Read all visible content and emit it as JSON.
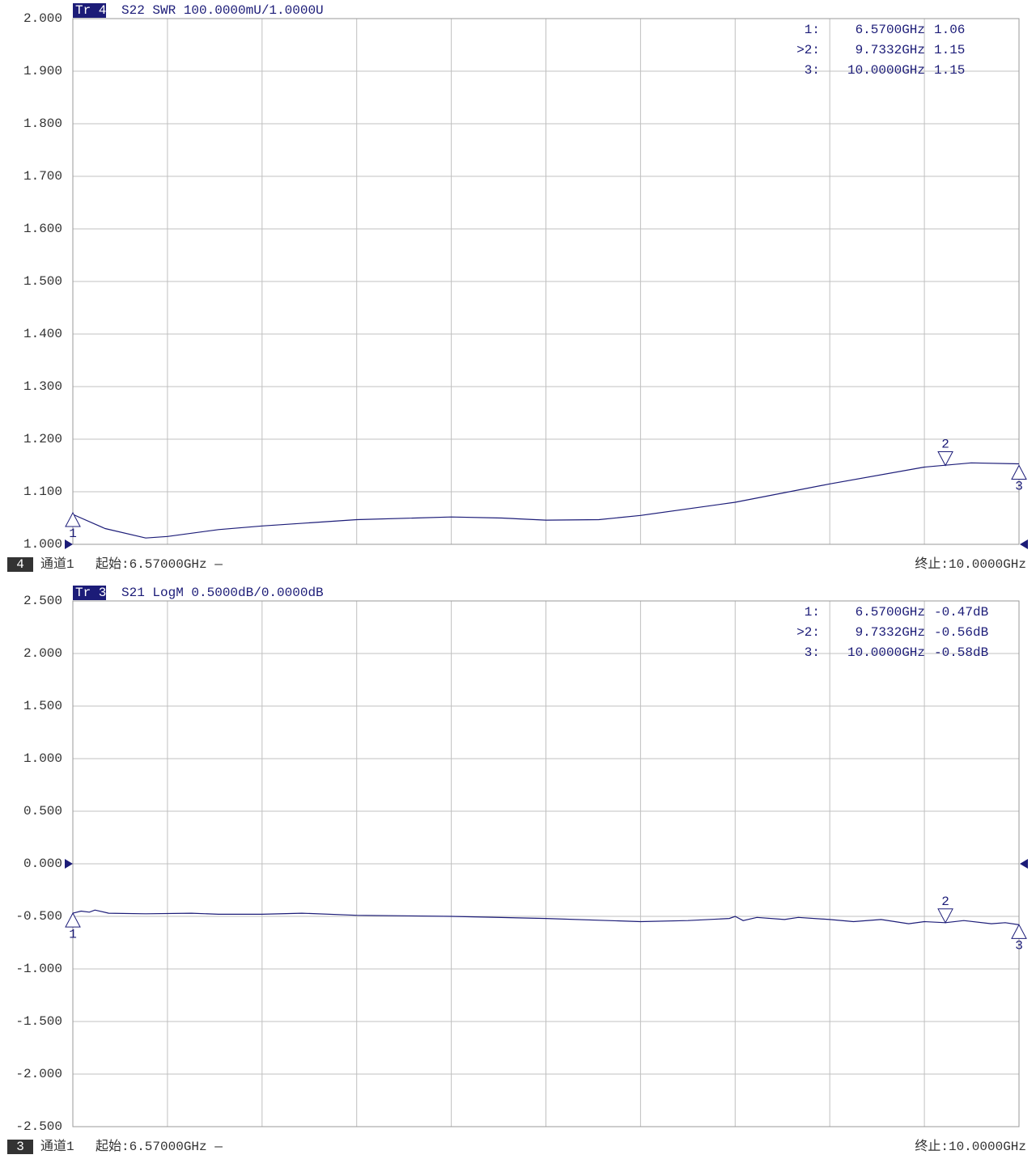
{
  "chart_data": [
    {
      "type": "line",
      "trace_tag": "Tr 4",
      "trace_info": "S22 SWR 100.0000mU/1.0000U",
      "color": "#1c1c78",
      "ylim": [
        1.0,
        2.0
      ],
      "yticks": [
        {
          "value": 2.0,
          "label": "2.000"
        },
        {
          "value": 1.9,
          "label": "1.900"
        },
        {
          "value": 1.8,
          "label": "1.800"
        },
        {
          "value": 1.7,
          "label": "1.700"
        },
        {
          "value": 1.6,
          "label": "1.600"
        },
        {
          "value": 1.5,
          "label": "1.500"
        },
        {
          "value": 1.4,
          "label": "1.400"
        },
        {
          "value": 1.3,
          "label": "1.300"
        },
        {
          "value": 1.2,
          "label": "1.200"
        },
        {
          "value": 1.1,
          "label": "1.100"
        },
        {
          "value": 1.0,
          "label": "1.000"
        }
      ],
      "xlim": [
        6.57,
        10.0
      ],
      "grid": true,
      "ref_level": 1.0,
      "x": [
        6.57,
        6.687,
        6.834,
        6.913,
        7.098,
        7.256,
        7.599,
        7.942,
        8.125,
        8.285,
        8.477,
        8.628,
        8.971,
        9.314,
        9.657,
        9.827,
        10.0
      ],
      "values": [
        1.057,
        1.03,
        1.012,
        1.015,
        1.028,
        1.035,
        1.047,
        1.052,
        1.05,
        1.046,
        1.047,
        1.055,
        1.08,
        1.115,
        1.147,
        1.155,
        1.153
      ],
      "markers": {
        "ids": [
          "1",
          "2",
          "3"
        ],
        "names": [
          "1:",
          ">2:",
          "3:"
        ],
        "active": 1,
        "x": [
          6.57,
          9.7332,
          10.0
        ],
        "x_labels": [
          "6.5700GHz",
          "9.7332GHz",
          "10.0000GHz"
        ],
        "values": [
          1.06,
          1.15,
          1.15
        ]
      },
      "trace_num": "4",
      "channel": "通道1",
      "start": "起始:6.57000GHz —",
      "stop": "终止:10.0000GHz"
    },
    {
      "type": "line",
      "trace_tag": "Tr 3",
      "trace_info": "S21 LogM 0.5000dB/0.0000dB",
      "color": "#1c1c78",
      "ylim": [
        -2.5,
        2.5
      ],
      "yticks": [
        {
          "value": 2.5,
          "label": "2.500"
        },
        {
          "value": 2.0,
          "label": "2.000"
        },
        {
          "value": 1.5,
          "label": "1.500"
        },
        {
          "value": 1.0,
          "label": "1.000"
        },
        {
          "value": 0.5,
          "label": "0.500"
        },
        {
          "value": 0.0,
          "label": "0.000"
        },
        {
          "value": -0.5,
          "label": "-0.500"
        },
        {
          "value": -1.0,
          "label": "-1.000"
        },
        {
          "value": -1.5,
          "label": "-1.500"
        },
        {
          "value": -2.0,
          "label": "-2.000"
        },
        {
          "value": -2.5,
          "label": "-2.500"
        }
      ],
      "xlim": [
        6.57,
        10.0
      ],
      "grid": true,
      "ref_level": 0.0,
      "x": [
        6.57,
        6.6,
        6.63,
        6.65,
        6.7,
        6.834,
        7.0,
        7.098,
        7.256,
        7.4,
        7.599,
        7.942,
        8.285,
        8.628,
        8.8,
        8.95,
        8.971,
        9.0,
        9.05,
        9.15,
        9.2,
        9.314,
        9.4,
        9.5,
        9.6,
        9.657,
        9.7332,
        9.8,
        9.9,
        9.95,
        10.0
      ],
      "values": [
        -0.47,
        -0.45,
        -0.46,
        -0.44,
        -0.47,
        -0.475,
        -0.47,
        -0.48,
        -0.48,
        -0.47,
        -0.49,
        -0.5,
        -0.52,
        -0.55,
        -0.54,
        -0.52,
        -0.5,
        -0.54,
        -0.51,
        -0.53,
        -0.51,
        -0.53,
        -0.55,
        -0.53,
        -0.57,
        -0.55,
        -0.56,
        -0.54,
        -0.57,
        -0.56,
        -0.58
      ],
      "markers": {
        "ids": [
          "1",
          "2",
          "3"
        ],
        "names": [
          "1:",
          ">2:",
          "3:"
        ],
        "active": 1,
        "x": [
          6.57,
          9.7332,
          10.0
        ],
        "x_labels": [
          "6.5700GHz",
          "9.7332GHz",
          "10.0000GHz"
        ],
        "values": [
          -0.47,
          -0.56,
          -0.58
        ],
        "value_labels": [
          "-0.47dB",
          "-0.56dB",
          "-0.58dB"
        ]
      },
      "trace_num": "3",
      "channel": "通道1",
      "start": "起始:6.57000GHz —",
      "stop": "终止:10.0000GHz"
    }
  ]
}
